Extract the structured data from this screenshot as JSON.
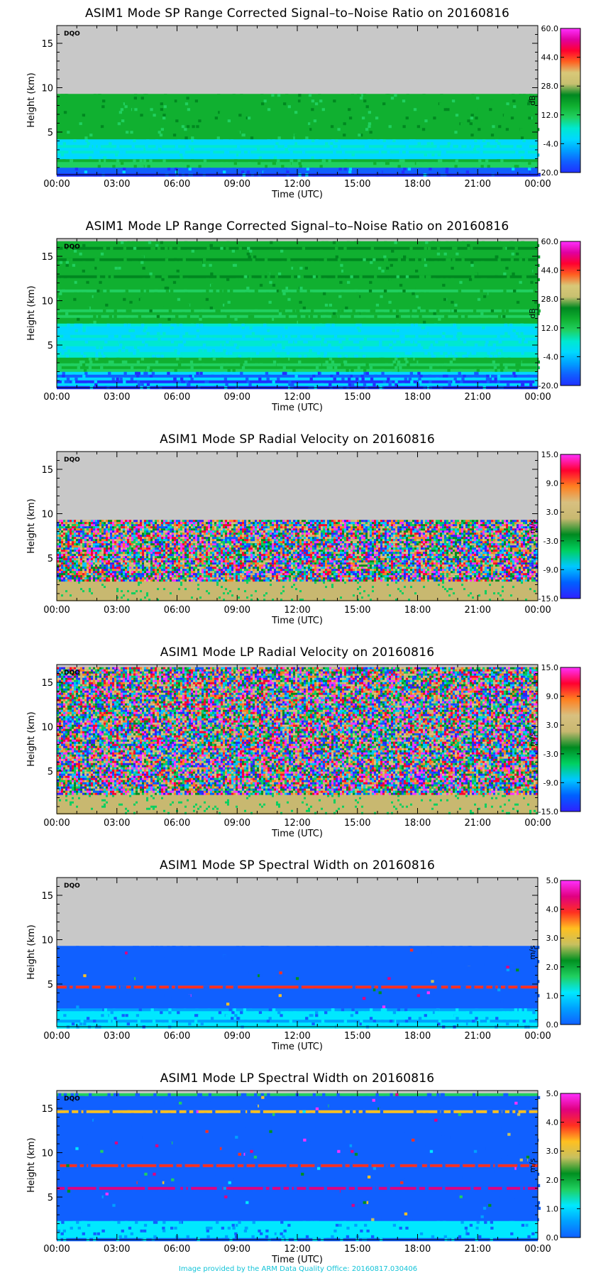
{
  "credit": "Image provided by the ARM Data Quality Office: 20160817.030406",
  "axes": {
    "xlabel": "Time (UTC)",
    "ylabel": "Height (km)",
    "xticks": [
      "00:00",
      "03:00",
      "06:00",
      "09:00",
      "12:00",
      "15:00",
      "18:00",
      "21:00",
      "00:00"
    ],
    "dqo": "DQO"
  },
  "colors": {
    "no_data": "#c8c8c8",
    "credit_text": "#13c4d8"
  },
  "chart_data": [
    {
      "type": "heatmap",
      "title": "ASIM1 Mode SP Range Corrected Signal–to–Noise Ratio on 20160816",
      "xlabel": "Time (UTC)",
      "ylabel": "Height (km)",
      "xlim": [
        "00:00",
        "24:00"
      ],
      "ylim": [
        0.2,
        17
      ],
      "yticks": [
        5,
        10,
        15
      ],
      "colorbar": {
        "unit": "dB",
        "ticks": [
          "60.0",
          "44.0",
          "28.0",
          "12.0",
          "-4.0",
          "-20.0"
        ],
        "range": [
          -20,
          60
        ]
      },
      "data_top_km": 9.3,
      "pattern": "snr"
    },
    {
      "type": "heatmap",
      "title": "ASIM1 Mode LP Range Corrected Signal–to–Noise Ratio on 20160816",
      "xlabel": "Time (UTC)",
      "ylabel": "Height (km)",
      "xlim": [
        "00:00",
        "24:00"
      ],
      "ylim": [
        0.2,
        17
      ],
      "yticks": [
        5,
        10,
        15
      ],
      "colorbar": {
        "unit": "dB",
        "ticks": [
          "60.0",
          "44.0",
          "28.0",
          "12.0",
          "-4.0",
          "-20.0"
        ],
        "range": [
          -20,
          60
        ]
      },
      "data_top_km": 16.7,
      "pattern": "snr"
    },
    {
      "type": "heatmap",
      "title": "ASIM1 Mode SP Radial Velocity  on 20160816",
      "xlabel": "Time (UTC)",
      "ylabel": "Height (km)",
      "xlim": [
        "00:00",
        "24:00"
      ],
      "ylim": [
        0.2,
        17
      ],
      "yticks": [
        5,
        10,
        15
      ],
      "colorbar": {
        "unit": "m/s",
        "ticks": [
          "15.0",
          "9.0",
          "3.0",
          "-3.0",
          "-9.0",
          "-15.0"
        ],
        "range": [
          -15,
          15
        ]
      },
      "data_top_km": 9.3,
      "pattern": "velocity"
    },
    {
      "type": "heatmap",
      "title": "ASIM1 Mode LP Radial Velocity  on 20160816",
      "xlabel": "Time (UTC)",
      "ylabel": "Height (km)",
      "xlim": [
        "00:00",
        "24:00"
      ],
      "ylim": [
        0.2,
        17
      ],
      "yticks": [
        5,
        10,
        15
      ],
      "colorbar": {
        "unit": "m/s",
        "ticks": [
          "15.0",
          "9.0",
          "3.0",
          "-3.0",
          "-9.0",
          "-15.0"
        ],
        "range": [
          -15,
          15
        ]
      },
      "data_top_km": 16.7,
      "pattern": "velocity"
    },
    {
      "type": "heatmap",
      "title": "ASIM1 Mode SP Spectral Width  on 20160816",
      "xlabel": "Time (UTC)",
      "ylabel": "Height (km)",
      "xlim": [
        "00:00",
        "24:00"
      ],
      "ylim": [
        0.2,
        17
      ],
      "yticks": [
        5,
        10,
        15
      ],
      "colorbar": {
        "unit": "m/s",
        "ticks": [
          "5.0",
          "4.0",
          "3.0",
          "2.0",
          "1.0",
          "0.0"
        ],
        "range": [
          0,
          5
        ]
      },
      "data_top_km": 9.3,
      "pattern": "width"
    },
    {
      "type": "heatmap",
      "title": "ASIM1 Mode LP Spectral Width  on 20160816",
      "xlabel": "Time (UTC)",
      "ylabel": "Height (km)",
      "xlim": [
        "00:00",
        "24:00"
      ],
      "ylim": [
        0.2,
        17
      ],
      "yticks": [
        5,
        10,
        15
      ],
      "colorbar": {
        "unit": "m/s",
        "ticks": [
          "5.0",
          "4.0",
          "3.0",
          "2.0",
          "1.0",
          "0.0"
        ],
        "range": [
          0,
          5
        ]
      },
      "data_top_km": 16.7,
      "pattern": "width"
    }
  ]
}
